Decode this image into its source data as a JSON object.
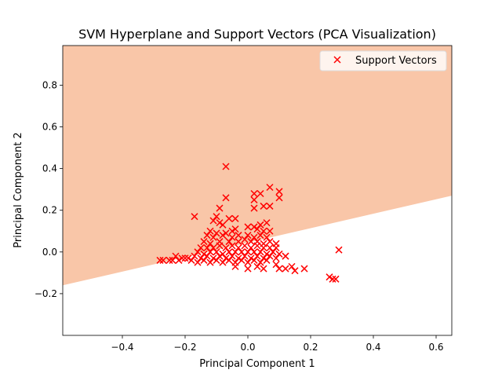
{
  "chart_data": {
    "type": "scatter",
    "title": "SVM Hyperplane and Support Vectors (PCA Visualization)",
    "xlabel": "Principal Component 1",
    "ylabel": "Principal Component 2",
    "xlim": [
      -0.59,
      0.65
    ],
    "ylim": [
      -0.4,
      0.99
    ],
    "xticks": [
      -0.4,
      -0.2,
      0.0,
      0.2,
      0.4,
      0.6
    ],
    "xtick_labels": [
      "−0.4",
      "−0.2",
      "0.0",
      "0.2",
      "0.4",
      "0.6"
    ],
    "yticks": [
      -0.2,
      0.0,
      0.2,
      0.4,
      0.6,
      0.8
    ],
    "ytick_labels": [
      "−0.2",
      "0.0",
      "0.2",
      "0.4",
      "0.6",
      "0.8"
    ],
    "grid": false,
    "legend": {
      "position": "top-right",
      "entries": [
        "Support Vectors"
      ]
    },
    "decision_boundary": {
      "points": [
        [
          -0.59,
          -0.16
        ],
        [
          0.65,
          0.27
        ]
      ],
      "upper_region_color": "#f9c6a8",
      "lower_region_color": "#ffffff"
    },
    "series": [
      {
        "name": "Support Vectors",
        "marker": "x",
        "color": "#ff0000",
        "points": [
          [
            -0.07,
            0.41
          ],
          [
            0.07,
            0.31
          ],
          [
            0.1,
            0.29
          ],
          [
            0.02,
            0.28
          ],
          [
            0.04,
            0.28
          ],
          [
            0.1,
            0.26
          ],
          [
            -0.07,
            0.26
          ],
          [
            0.02,
            0.25
          ],
          [
            0.05,
            0.22
          ],
          [
            0.07,
            0.22
          ],
          [
            0.02,
            0.21
          ],
          [
            -0.09,
            0.21
          ],
          [
            -0.17,
            0.17
          ],
          [
            -0.1,
            0.17
          ],
          [
            -0.06,
            0.16
          ],
          [
            -0.04,
            0.16
          ],
          [
            -0.11,
            0.15
          ],
          [
            -0.09,
            0.14
          ],
          [
            -0.08,
            0.13
          ],
          [
            0.06,
            0.14
          ],
          [
            0.04,
            0.13
          ],
          [
            0.0,
            0.12
          ],
          [
            0.02,
            0.12
          ],
          [
            -0.04,
            0.11
          ],
          [
            -0.12,
            0.1
          ],
          [
            -0.1,
            0.09
          ],
          [
            -0.07,
            0.09
          ],
          [
            -0.05,
            0.1
          ],
          [
            0.03,
            0.11
          ],
          [
            0.05,
            0.1
          ],
          [
            0.07,
            0.1
          ],
          [
            -0.13,
            0.08
          ],
          [
            -0.11,
            0.07
          ],
          [
            -0.08,
            0.08
          ],
          [
            -0.05,
            0.07
          ],
          [
            -0.03,
            0.08
          ],
          [
            0.0,
            0.08
          ],
          [
            0.02,
            0.07
          ],
          [
            0.04,
            0.08
          ],
          [
            0.06,
            0.07
          ],
          [
            -0.14,
            0.05
          ],
          [
            -0.12,
            0.04
          ],
          [
            -0.09,
            0.05
          ],
          [
            -0.06,
            0.05
          ],
          [
            -0.03,
            0.05
          ],
          [
            -0.01,
            0.06
          ],
          [
            0.01,
            0.05
          ],
          [
            0.03,
            0.05
          ],
          [
            0.05,
            0.04
          ],
          [
            0.07,
            0.05
          ],
          [
            0.09,
            0.04
          ],
          [
            -0.15,
            0.02
          ],
          [
            -0.13,
            0.02
          ],
          [
            -0.11,
            0.02
          ],
          [
            -0.09,
            0.03
          ],
          [
            -0.07,
            0.02
          ],
          [
            -0.05,
            0.03
          ],
          [
            -0.03,
            0.02
          ],
          [
            -0.01,
            0.03
          ],
          [
            0.01,
            0.02
          ],
          [
            0.03,
            0.03
          ],
          [
            0.05,
            0.02
          ],
          [
            0.07,
            0.02
          ],
          [
            0.09,
            0.02
          ],
          [
            -0.16,
            0.0
          ],
          [
            -0.14,
            -0.01
          ],
          [
            -0.12,
            0.0
          ],
          [
            -0.1,
            0.0
          ],
          [
            -0.08,
            -0.01
          ],
          [
            -0.06,
            0.0
          ],
          [
            -0.04,
            0.0
          ],
          [
            -0.02,
            0.0
          ],
          [
            0.0,
            0.0
          ],
          [
            0.02,
            0.0
          ],
          [
            0.04,
            0.0
          ],
          [
            0.06,
            -0.01
          ],
          [
            0.08,
            0.0
          ],
          [
            0.1,
            -0.01
          ],
          [
            0.12,
            -0.02
          ],
          [
            -0.17,
            -0.02
          ],
          [
            -0.15,
            -0.03
          ],
          [
            -0.13,
            -0.02
          ],
          [
            -0.11,
            -0.03
          ],
          [
            -0.09,
            -0.02
          ],
          [
            -0.07,
            -0.03
          ],
          [
            -0.05,
            -0.02
          ],
          [
            -0.03,
            -0.03
          ],
          [
            -0.01,
            -0.02
          ],
          [
            0.01,
            -0.03
          ],
          [
            0.03,
            -0.02
          ],
          [
            0.05,
            -0.03
          ],
          [
            0.07,
            -0.02
          ],
          [
            0.09,
            -0.03
          ],
          [
            -0.19,
            -0.03
          ],
          [
            -0.21,
            -0.03
          ],
          [
            -0.23,
            -0.02
          ],
          [
            -0.24,
            -0.04
          ],
          [
            -0.22,
            -0.04
          ],
          [
            -0.2,
            -0.03
          ],
          [
            -0.18,
            -0.04
          ],
          [
            -0.16,
            -0.05
          ],
          [
            -0.14,
            -0.04
          ],
          [
            -0.12,
            -0.05
          ],
          [
            -0.1,
            -0.04
          ],
          [
            -0.08,
            -0.05
          ],
          [
            -0.06,
            -0.04
          ],
          [
            -0.04,
            -0.05
          ],
          [
            -0.02,
            -0.04
          ],
          [
            0.0,
            -0.05
          ],
          [
            0.02,
            -0.04
          ],
          [
            0.04,
            -0.05
          ],
          [
            0.06,
            -0.04
          ],
          [
            -0.28,
            -0.04
          ],
          [
            -0.27,
            -0.04
          ],
          [
            -0.25,
            -0.04
          ],
          [
            0.03,
            -0.07
          ],
          [
            -0.04,
            -0.07
          ],
          [
            0.0,
            -0.08
          ],
          [
            0.05,
            -0.08
          ],
          [
            0.09,
            -0.06
          ],
          [
            0.1,
            -0.08
          ],
          [
            0.12,
            -0.08
          ],
          [
            0.14,
            -0.07
          ],
          [
            0.15,
            -0.09
          ],
          [
            0.18,
            -0.08
          ],
          [
            0.26,
            -0.12
          ],
          [
            0.27,
            -0.13
          ],
          [
            0.28,
            -0.13
          ],
          [
            0.29,
            0.01
          ],
          [
            0.12,
            -0.02
          ]
        ]
      }
    ]
  }
}
